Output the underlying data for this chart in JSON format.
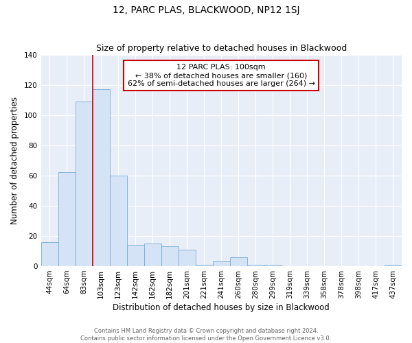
{
  "title": "12, PARC PLAS, BLACKWOOD, NP12 1SJ",
  "subtitle": "Size of property relative to detached houses in Blackwood",
  "xlabel": "Distribution of detached houses by size in Blackwood",
  "ylabel": "Number of detached properties",
  "bar_labels": [
    "44sqm",
    "64sqm",
    "83sqm",
    "103sqm",
    "123sqm",
    "142sqm",
    "162sqm",
    "182sqm",
    "201sqm",
    "221sqm",
    "241sqm",
    "260sqm",
    "280sqm",
    "299sqm",
    "319sqm",
    "339sqm",
    "358sqm",
    "378sqm",
    "398sqm",
    "417sqm",
    "437sqm"
  ],
  "bar_values": [
    16,
    62,
    109,
    117,
    60,
    14,
    15,
    13,
    11,
    1,
    3,
    6,
    1,
    1,
    0,
    0,
    0,
    0,
    0,
    0,
    1
  ],
  "bar_color": "#d4e3f5",
  "bar_edge_color": "#7aadd4",
  "vline_color": "#cc0000",
  "vline_bar_index": 3,
  "ylim": [
    0,
    140
  ],
  "yticks": [
    0,
    20,
    40,
    60,
    80,
    100,
    120,
    140
  ],
  "annotation_text_line1": "12 PARC PLAS: 100sqm",
  "annotation_text_line2": "← 38% of detached houses are smaller (160)",
  "annotation_text_line3": "62% of semi-detached houses are larger (264) →",
  "annotation_box_color": "#ffffff",
  "annotation_box_edge": "#cc0000",
  "footer_line1": "Contains HM Land Registry data © Crown copyright and database right 2024.",
  "footer_line2": "Contains public sector information licensed under the Open Government Licence v3.0.",
  "bg_color": "#e8eef8",
  "grid_color": "#ffffff",
  "title_fontsize": 10,
  "subtitle_fontsize": 9,
  "axis_label_fontsize": 8.5,
  "tick_fontsize": 7.5
}
